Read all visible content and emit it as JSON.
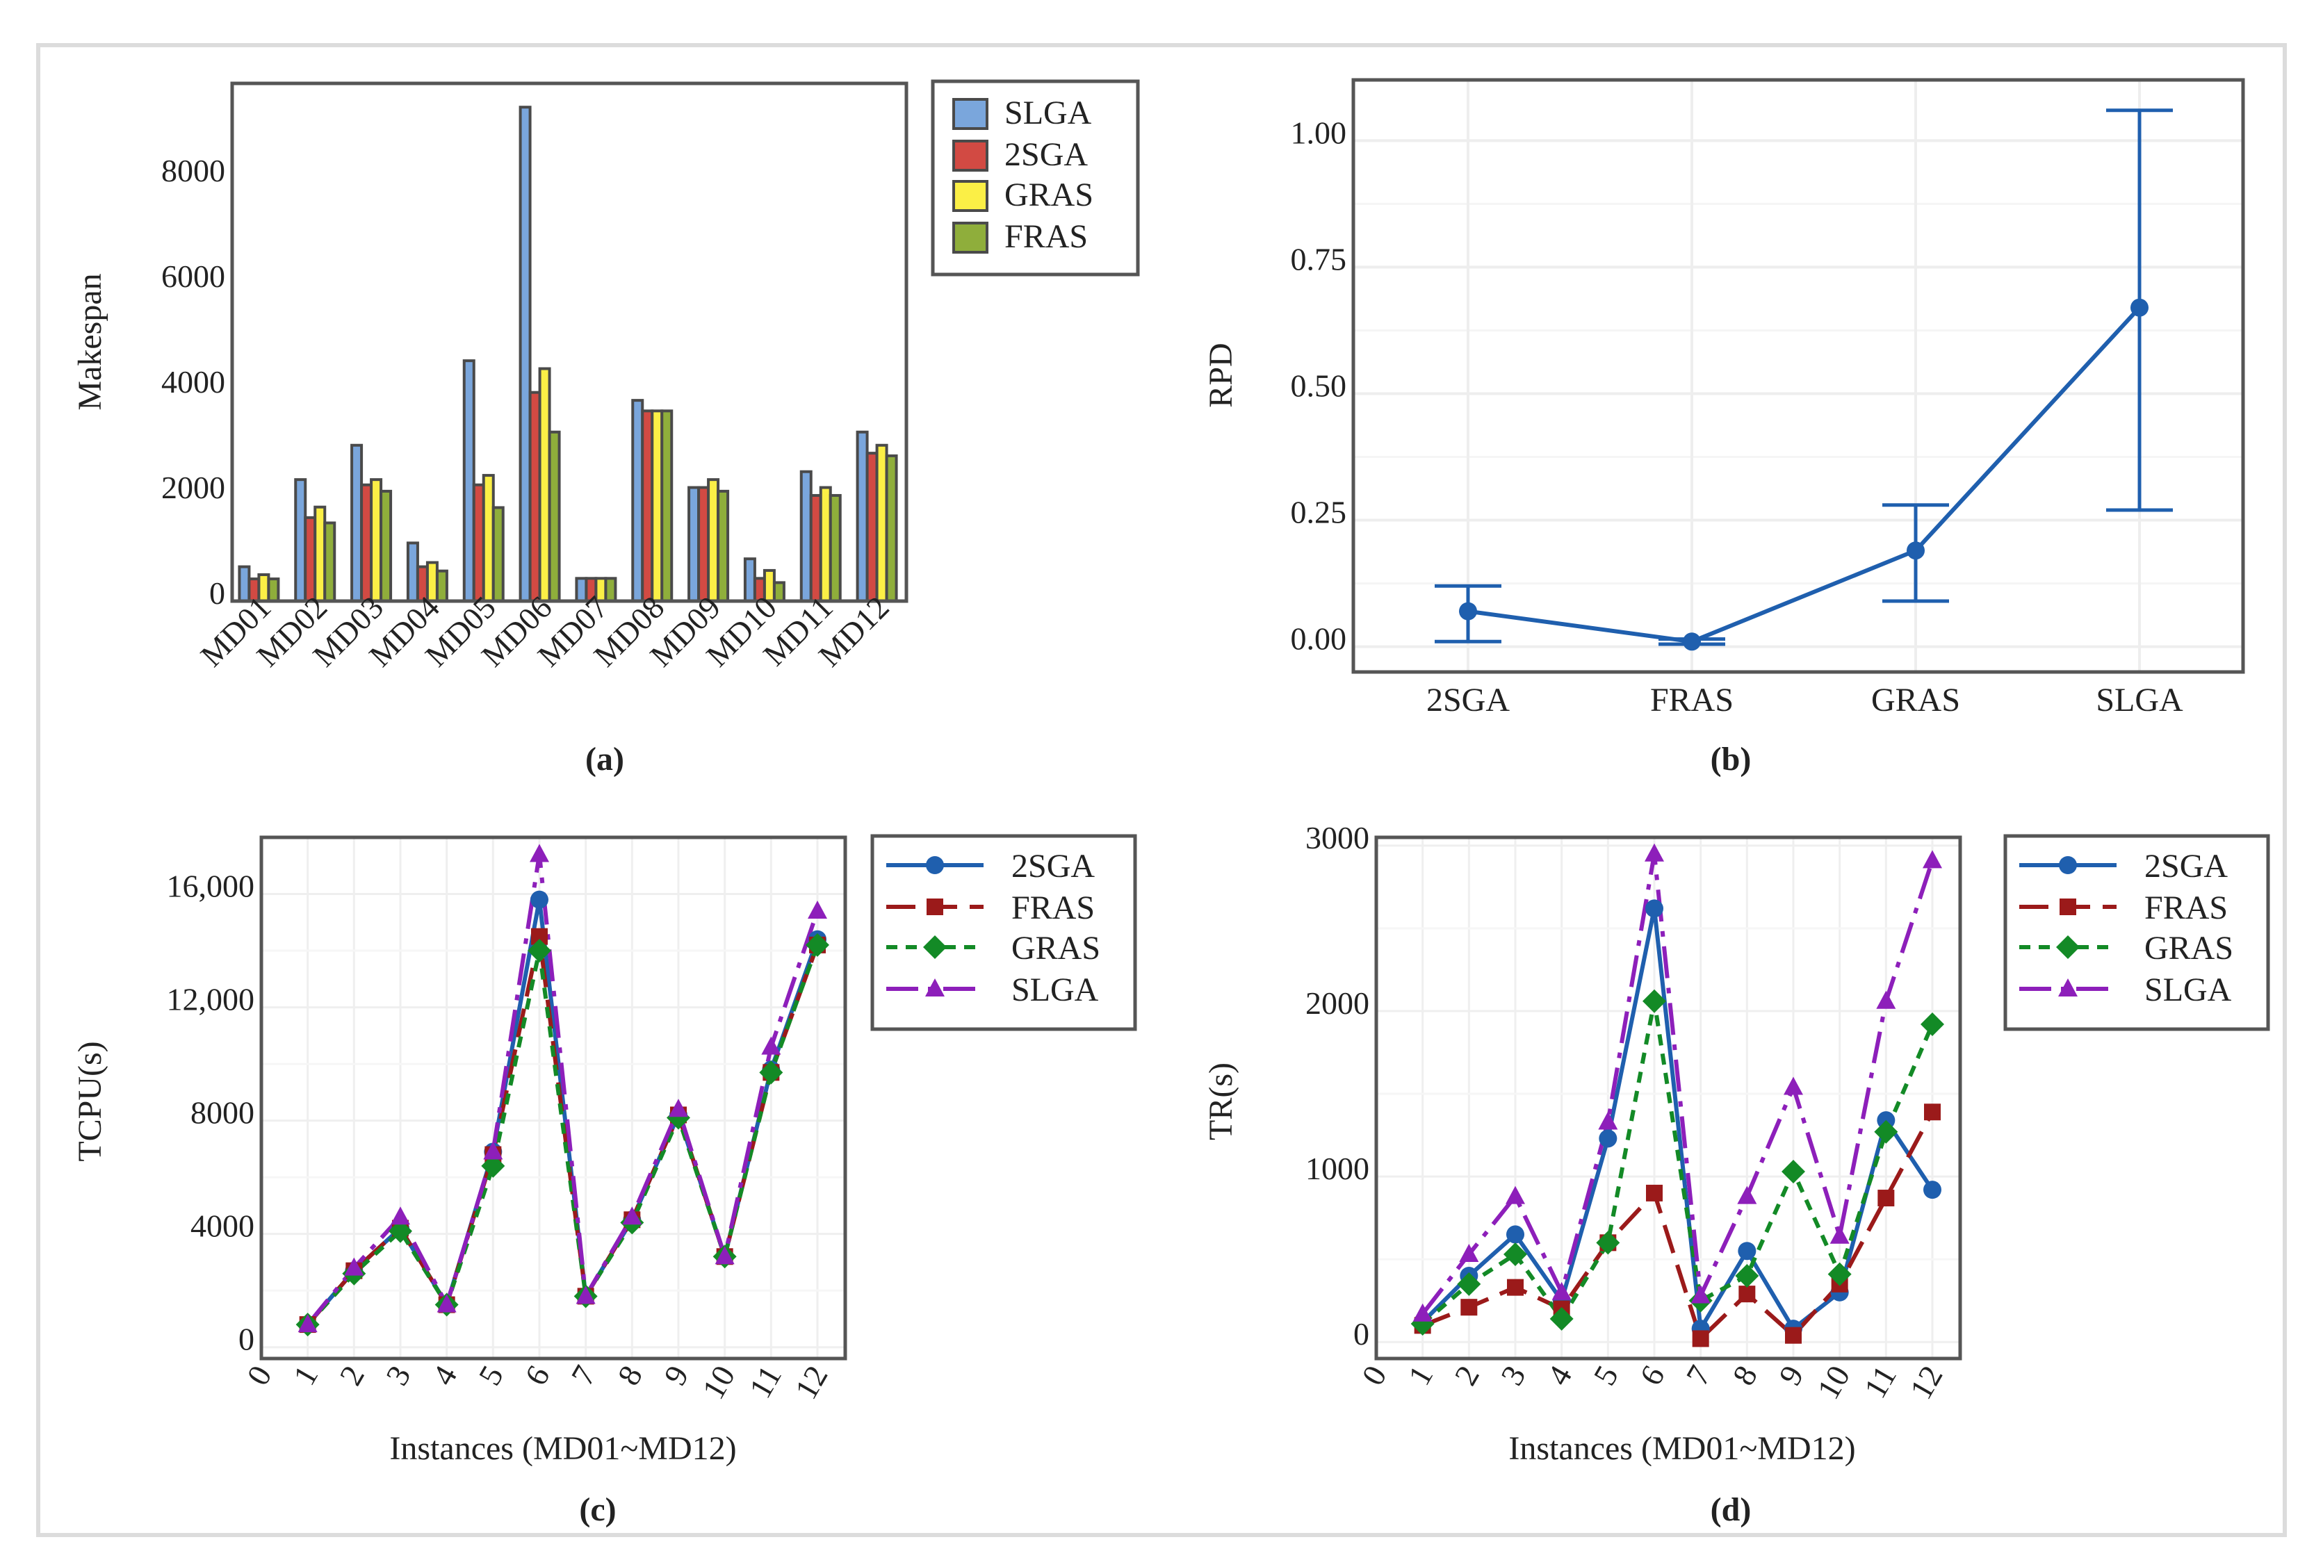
{
  "panels": {
    "a": {
      "caption": "(a)"
    },
    "b": {
      "caption": "(b)"
    },
    "c": {
      "caption": "(c)"
    },
    "d": {
      "caption": "(d)"
    }
  },
  "colors": {
    "SLGA_bar": "#7aa6dc",
    "2SGA_bar": "#d24a43",
    "GRAS_bar": "#fbef46",
    "FRAS_bar": "#8fae3b",
    "2SGA_line": "#1f5fae",
    "FRAS_line": "#9b1a1a",
    "GRAS_line": "#138a26",
    "SLGA_line": "#8d1fba"
  },
  "chart_data": [
    {
      "id": "a",
      "type": "bar",
      "title": "",
      "ylabel": "Makespan",
      "xlabel": "",
      "ylim": [
        0,
        9800
      ],
      "yticks": [
        0,
        2000,
        4000,
        6000,
        8000
      ],
      "ytick_labels": [
        "0",
        "2000",
        "4000",
        "6000",
        "8000"
      ],
      "categories": [
        "MD01",
        "MD02",
        "MD03",
        "MD04",
        "MD05",
        "MD06",
        "MD07",
        "MD08",
        "MD09",
        "MD10",
        "MD11",
        "MD12"
      ],
      "series": [
        {
          "name": "SLGA",
          "values": [
            650,
            2300,
            2950,
            1100,
            4550,
            9350,
            430,
            3800,
            2150,
            800,
            2450,
            3200
          ]
        },
        {
          "name": "2SGA",
          "values": [
            420,
            1580,
            2200,
            650,
            2200,
            3950,
            430,
            3600,
            2150,
            430,
            2000,
            2800
          ]
        },
        {
          "name": "GRAS",
          "values": [
            500,
            1780,
            2300,
            730,
            2380,
            4400,
            430,
            3600,
            2300,
            580,
            2150,
            2950
          ]
        },
        {
          "name": "FRAS",
          "values": [
            420,
            1480,
            2080,
            570,
            1770,
            3200,
            430,
            3600,
            2080,
            350,
            2000,
            2750
          ]
        }
      ]
    },
    {
      "id": "b",
      "type": "line",
      "title": "",
      "ylabel": "RPD",
      "xlabel": "",
      "categories": [
        "2SGA",
        "FRAS",
        "GRAS",
        "SLGA"
      ],
      "ylim": [
        -0.05,
        1.12
      ],
      "yticks": [
        0,
        0.25,
        0.5,
        0.75,
        1.0
      ],
      "ytick_labels": [
        "0.00",
        "0.25",
        "0.50",
        "0.75",
        "1.00"
      ],
      "series": [
        {
          "name": "RPD",
          "values": [
            0.07,
            0.01,
            0.19,
            0.67
          ],
          "err_low": [
            0.01,
            0.005,
            0.09,
            0.27
          ],
          "err_high": [
            0.12,
            0.015,
            0.28,
            1.06
          ]
        }
      ]
    },
    {
      "id": "c",
      "type": "line",
      "title": "",
      "ylabel": "TCPU(s)",
      "xlabel": "Instances (MD01~MD12)",
      "x": [
        1,
        2,
        3,
        4,
        5,
        6,
        7,
        8,
        9,
        10,
        11,
        12
      ],
      "xlim": [
        0,
        12.6
      ],
      "xticks": [
        0,
        1,
        2,
        3,
        4,
        5,
        6,
        7,
        8,
        9,
        10,
        11,
        12
      ],
      "ylim": [
        -400,
        18000
      ],
      "yticks": [
        0,
        4000,
        8000,
        12000,
        16000
      ],
      "ytick_labels": [
        "0",
        "4000",
        "8000",
        "12,000",
        "16,000"
      ],
      "series": [
        {
          "name": "2SGA",
          "values": [
            800,
            2700,
            4200,
            1500,
            6900,
            15800,
            1800,
            4500,
            8200,
            3200,
            9800,
            14400
          ]
        },
        {
          "name": "FRAS",
          "values": [
            800,
            2700,
            4200,
            1500,
            6800,
            14500,
            1800,
            4500,
            8200,
            3200,
            9700,
            14200
          ]
        },
        {
          "name": "GRAS",
          "values": [
            800,
            2600,
            4100,
            1500,
            6400,
            14000,
            1800,
            4400,
            8100,
            3200,
            9700,
            14200
          ]
        },
        {
          "name": "SLGA",
          "values": [
            800,
            2800,
            4600,
            1500,
            6900,
            17400,
            1800,
            4600,
            8400,
            3200,
            10600,
            15400
          ]
        }
      ]
    },
    {
      "id": "d",
      "type": "line",
      "title": "",
      "ylabel": "TR(s)",
      "xlabel": "Instances (MD01~MD12)",
      "x": [
        1,
        2,
        3,
        4,
        5,
        6,
        7,
        8,
        9,
        10,
        11,
        12
      ],
      "xlim": [
        0,
        12.6
      ],
      "xticks": [
        0,
        1,
        2,
        3,
        4,
        5,
        6,
        7,
        8,
        9,
        10,
        11,
        12
      ],
      "ylim": [
        -100,
        3050
      ],
      "yticks": [
        0,
        1000,
        2000,
        3000
      ],
      "ytick_labels": [
        "0",
        "1000",
        "2000",
        "3000"
      ],
      "series": [
        {
          "name": "2SGA",
          "values": [
            120,
            400,
            650,
            250,
            1230,
            2620,
            80,
            550,
            80,
            300,
            1340,
            920
          ]
        },
        {
          "name": "FRAS",
          "values": [
            100,
            210,
            330,
            200,
            600,
            900,
            20,
            290,
            40,
            350,
            870,
            1390
          ]
        },
        {
          "name": "GRAS",
          "values": [
            110,
            350,
            530,
            140,
            600,
            2060,
            250,
            400,
            1030,
            410,
            1270,
            1920
          ]
        },
        {
          "name": "SLGA",
          "values": [
            170,
            530,
            880,
            300,
            1330,
            2950,
            280,
            880,
            1540,
            640,
            2060,
            2910
          ]
        }
      ]
    }
  ]
}
